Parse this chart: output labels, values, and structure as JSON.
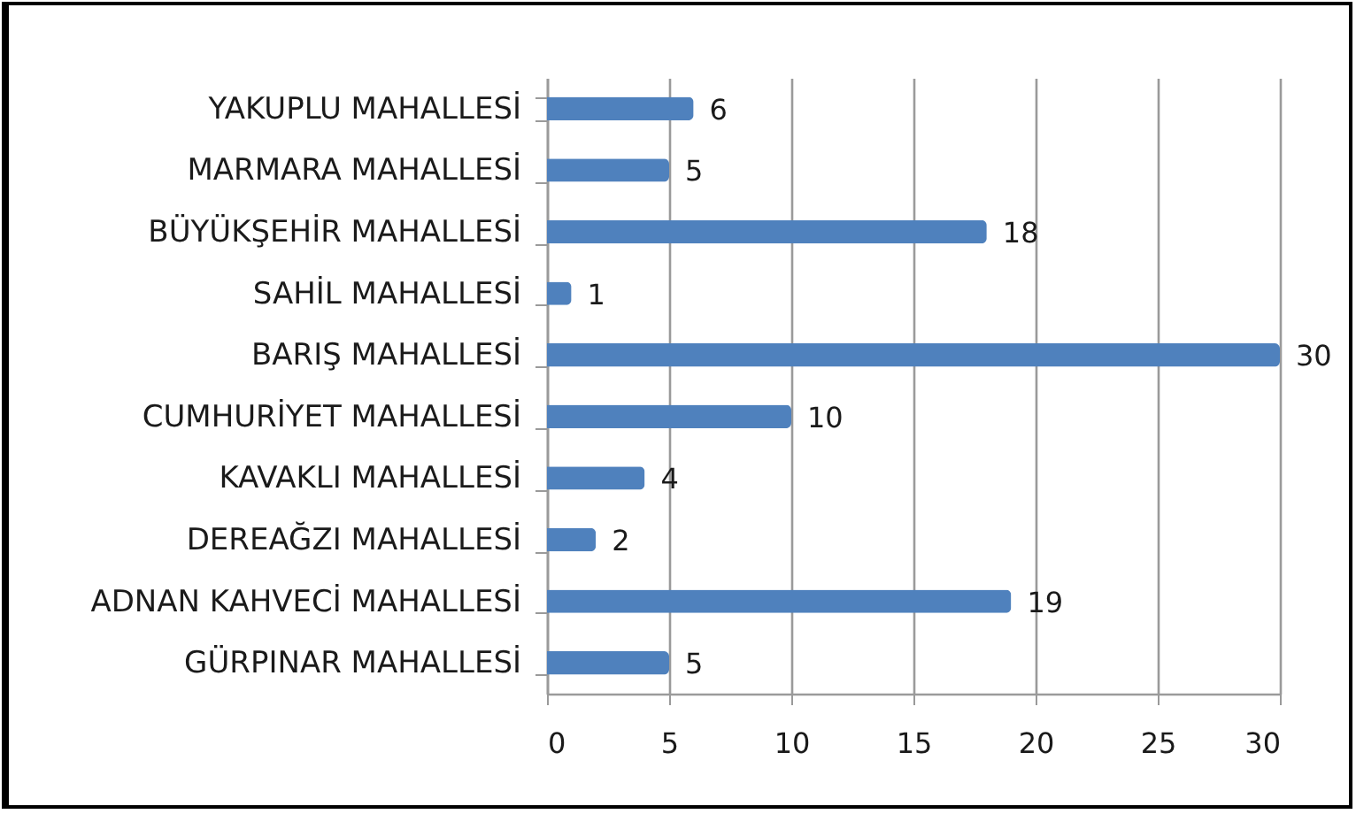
{
  "chart_data": {
    "type": "bar",
    "orientation": "horizontal",
    "categories": [
      "YAKUPLU MAHALLESİ",
      "MARMARA MAHALLESİ",
      "BÜYÜKŞEHİR MAHALLESİ",
      "SAHİL MAHALLESİ",
      "BARIŞ MAHALLESİ",
      "CUMHURİYET MAHALLESİ",
      "KAVAKLI MAHALLESİ",
      "DEREAĞZI MAHALLESİ",
      "ADNAN KAHVECİ MAHALLESİ",
      "GÜRPINAR MAHALLESİ"
    ],
    "values": [
      6,
      5,
      18,
      1,
      30,
      10,
      4,
      2,
      19,
      5
    ],
    "color": "#4f81bd",
    "xlim": [
      0,
      30
    ],
    "xticks": [
      0,
      5,
      10,
      15,
      20,
      25,
      30
    ],
    "grid": "x",
    "data_labels": true
  }
}
